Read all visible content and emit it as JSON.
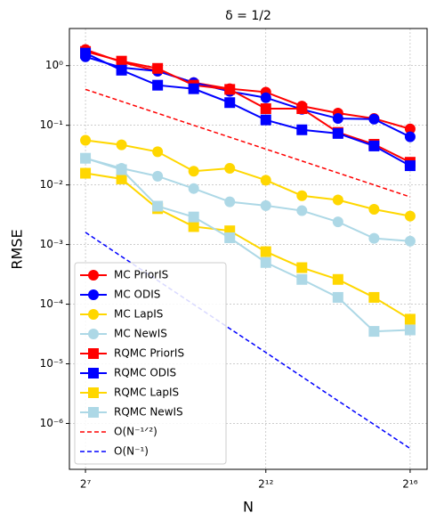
{
  "chart_data": {
    "type": "line",
    "title": "δ = 1/2",
    "xlabel": "N",
    "ylabel": "RMSE",
    "xscale": "log2",
    "yscale": "log10",
    "grid": true,
    "legend": "lower left",
    "x": [
      128,
      256,
      512,
      1024,
      2048,
      4096,
      8192,
      16384,
      32768,
      65536
    ],
    "xlim": [
      94,
      90800
    ],
    "ylim": [
      1.7e-07,
      4.2
    ],
    "xticks": [
      {
        "value": 128,
        "label": "2⁷"
      },
      {
        "value": 4096,
        "label": "2¹²"
      },
      {
        "value": 65536,
        "label": "2¹⁶"
      }
    ],
    "yticks": [
      {
        "value": 1e-06,
        "label": "10⁻⁶"
      },
      {
        "value": 1e-05,
        "label": "10⁻⁵"
      },
      {
        "value": 0.0001,
        "label": "10⁻⁴"
      },
      {
        "value": 0.001,
        "label": "10⁻³"
      },
      {
        "value": 0.01,
        "label": "10⁻²"
      },
      {
        "value": 0.1,
        "label": "10⁻¹"
      },
      {
        "value": 1,
        "label": "10⁰"
      }
    ],
    "series": [
      {
        "name": "MC PriorIS",
        "color": "#ff0000",
        "marker": "circle",
        "values": [
          1.86,
          1.15,
          0.81,
          0.52,
          0.41,
          0.36,
          0.21,
          0.16,
          0.13,
          0.087
        ]
      },
      {
        "name": "MC ODIS",
        "color": "#0000ff",
        "marker": "circle",
        "values": [
          1.41,
          0.93,
          0.81,
          0.52,
          0.37,
          0.29,
          0.185,
          0.13,
          0.127,
          0.064
        ]
      },
      {
        "name": "MC LapIS",
        "color": "#ffd700",
        "marker": "circle",
        "values": [
          0.056,
          0.047,
          0.036,
          0.017,
          0.019,
          0.012,
          0.0066,
          0.0056,
          0.0039,
          0.003
        ]
      },
      {
        "name": "MC NewIS",
        "color": "#add8e6",
        "marker": "circle",
        "values": [
          0.028,
          0.019,
          0.014,
          0.0087,
          0.0052,
          0.0045,
          0.0037,
          0.0024,
          0.00127,
          0.00114
        ]
      },
      {
        "name": "RQMC PriorIS",
        "color": "#ff0000",
        "marker": "square",
        "values": [
          1.73,
          1.19,
          0.9,
          0.47,
          0.4,
          0.19,
          0.19,
          0.076,
          0.048,
          0.024
        ]
      },
      {
        "name": "RQMC ODIS",
        "color": "#0000ff",
        "marker": "square",
        "values": [
          1.62,
          0.84,
          0.47,
          0.41,
          0.24,
          0.123,
          0.084,
          0.073,
          0.045,
          0.021
        ]
      },
      {
        "name": "RQMC LapIS",
        "color": "#ffd700",
        "marker": "square",
        "values": [
          0.0157,
          0.0126,
          0.004,
          0.002,
          0.0017,
          0.00076,
          0.00041,
          0.00026,
          0.00013,
          5.6e-05
        ]
      },
      {
        "name": "RQMC NewIS",
        "color": "#add8e6",
        "marker": "square",
        "values": [
          0.028,
          0.018,
          0.0044,
          0.0029,
          0.0013,
          0.0005,
          0.00026,
          0.00013,
          3.5e-05,
          3.7e-05
        ]
      },
      {
        "name": "O(N⁻¹ᐟ²)",
        "color": "#ff0000",
        "dashed": true,
        "values": [
          0.4,
          0.252,
          0.159,
          0.1,
          0.0632,
          0.0399,
          0.0252,
          0.0159,
          0.01,
          0.0063
        ]
      },
      {
        "name": "O(N⁻¹)",
        "color": "#0000ff",
        "dashed": true,
        "values": [
          0.0016,
          0.00063,
          0.00025,
          9.9e-05,
          3.9e-05,
          1.55e-05,
          6.1e-06,
          2.4e-06,
          9.6e-07,
          3.8e-07
        ]
      }
    ]
  }
}
